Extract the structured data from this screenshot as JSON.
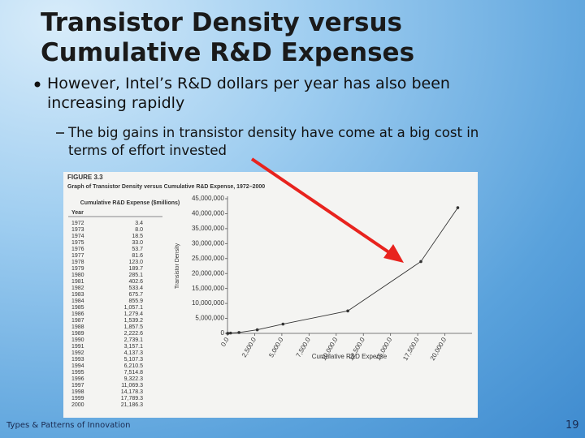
{
  "slide": {
    "title": [
      "Transistor Density versus",
      "Cumulative R&D Expenses"
    ],
    "bullet": [
      "However, Intel’s R&D dollars per year has also been",
      "increasing rapidly"
    ],
    "sub_bullet": [
      "The big gains in transistor density have come at a big cost in",
      "terms of effort invested"
    ],
    "footer": "Types & Patterns of Innovation",
    "page_number": "19"
  },
  "figure": {
    "label": "FIGURE 3.3",
    "caption": "Graph of Transistor Density versus Cumulative R&D Expense, 1972–2000",
    "table": {
      "headers": [
        "Year",
        "Cumulative R&D Expense ($millions)"
      ],
      "rows": [
        [
          "1972",
          "3.4"
        ],
        [
          "1973",
          "8.0"
        ],
        [
          "1974",
          "18.5"
        ],
        [
          "1975",
          "33.0"
        ],
        [
          "1976",
          "53.7"
        ],
        [
          "1977",
          "81.6"
        ],
        [
          "1978",
          "123.0"
        ],
        [
          "1979",
          "189.7"
        ],
        [
          "1980",
          "285.1"
        ],
        [
          "1981",
          "402.6"
        ],
        [
          "1982",
          "533.4"
        ],
        [
          "1983",
          "675.7"
        ],
        [
          "1984",
          "855.9"
        ],
        [
          "1985",
          "1,057.1"
        ],
        [
          "1986",
          "1,279.4"
        ],
        [
          "1987",
          "1,539.2"
        ],
        [
          "1988",
          "1,857.5"
        ],
        [
          "1989",
          "2,222.6"
        ],
        [
          "1990",
          "2,739.1"
        ],
        [
          "1991",
          "3,157.1"
        ],
        [
          "1992",
          "4,137.3"
        ],
        [
          "1993",
          "5,107.3"
        ],
        [
          "1994",
          "6,210.5"
        ],
        [
          "1995",
          "7,514.8"
        ],
        [
          "1996",
          "9,322.3"
        ],
        [
          "1997",
          "11,069.3"
        ],
        [
          "1998",
          "14,178.3"
        ],
        [
          "1999",
          "17,789.3"
        ],
        [
          "2000",
          "21,186.3"
        ]
      ]
    }
  },
  "chart_data": {
    "type": "line",
    "x_label": "Cumulative R&D Expense",
    "y_label": "Transistor Density",
    "x": [
      3.4,
      53.7,
      285.1,
      1057.1,
      2739.1,
      5107.3,
      11069.3,
      17789.3,
      21186.3
    ],
    "values": [
      0,
      0,
      100000,
      300000,
      1200000,
      3100000,
      7500000,
      24000000,
      42000000
    ],
    "color": "#333333",
    "xlim": [
      0,
      22500
    ],
    "xticks": [
      {
        "value": 0,
        "label": "0.0"
      },
      {
        "value": 2500,
        "label": "2,500.0"
      },
      {
        "value": 5000,
        "label": "5,000.0"
      },
      {
        "value": 7500,
        "label": "7,500.0"
      },
      {
        "value": 10000,
        "label": "10,000.0"
      },
      {
        "value": 12500,
        "label": "12,500.0"
      },
      {
        "value": 15000,
        "label": "15,000.0"
      },
      {
        "value": 17500,
        "label": "17,500.0"
      },
      {
        "value": 20000,
        "label": "20,000.0"
      }
    ],
    "ylim": [
      0,
      45000000
    ],
    "yticks": [
      0,
      {
        "value": 5000000,
        "label": "5,000,000"
      },
      {
        "value": 10000000,
        "label": "10,000,000"
      },
      {
        "value": 15000000,
        "label": "15,000,000"
      },
      {
        "value": 20000000,
        "label": "20,000,000"
      },
      {
        "value": 25000000,
        "label": "25,000,000"
      },
      {
        "value": 30000000,
        "label": "30,000,000"
      },
      {
        "value": 35000000,
        "label": "35,000,000"
      },
      {
        "value": 40000000,
        "label": "40,000,000"
      },
      {
        "value": 45000000,
        "label": "45,000,000"
      }
    ]
  }
}
